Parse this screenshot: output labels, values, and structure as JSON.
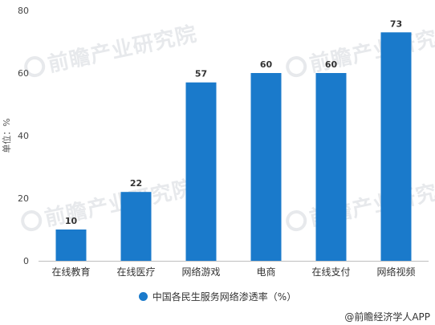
{
  "chart_data": {
    "type": "bar",
    "categories": [
      "在线教育",
      "在线医疗",
      "网络游戏",
      "电商",
      "在线支付",
      "网络视频"
    ],
    "values": [
      10,
      22,
      57,
      60,
      60,
      73
    ],
    "ylabel": "单位：%",
    "ylim": [
      0,
      80
    ],
    "yticks": [
      0,
      20,
      40,
      60,
      80
    ],
    "grid": false,
    "legend_position": "bottom",
    "series": [
      {
        "name": "中国各民生服务网络渗透率（%）",
        "values": [
          10,
          22,
          57,
          60,
          60,
          73
        ]
      }
    ],
    "bar_color": "#1a7acb"
  },
  "source": "@前瞻经济学人APP",
  "watermark": "前瞻产业研究院"
}
